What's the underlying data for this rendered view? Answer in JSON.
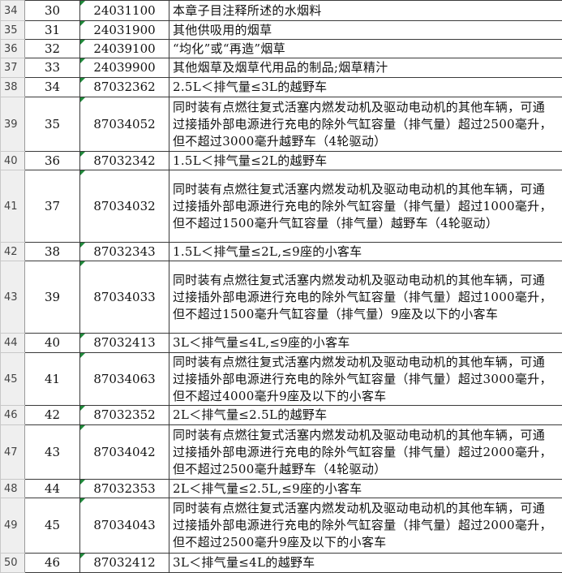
{
  "table": {
    "rows": [
      [
        "34",
        "30",
        "24031100",
        "本章子目注释所述的水烟料"
      ],
      [
        "35",
        "31",
        "24031900",
        "其他供吸用的烟草"
      ],
      [
        "36",
        "32",
        "24039100",
        "“均化”或“再造”烟草"
      ],
      [
        "37",
        "33",
        "24039900",
        "其他烟草及烟草代用品的制品;烟草精汁"
      ],
      [
        "38",
        "34",
        "87032362",
        "2.5L＜排气量≤3L的越野车"
      ],
      [
        "39",
        "35",
        "87034052",
        "同时装有点燃往复式活塞内燃发动机及驱动电动机的其他车辆，可通过接插外部电源进行充电的除外气缸容量（排气量）超过2500毫升，但不超过3000毫升越野车（4轮驱动）"
      ],
      [
        "40",
        "36",
        "87032342",
        "1.5L＜排气量≤2L的越野车"
      ],
      [
        "41",
        "37",
        "87034032",
        "同时装有点燃往复式活塞内燃发动机及驱动电动机的其他车辆，可通过接插外部电源进行充电的除外气缸容量（排气量）超过1000毫升，但不超过1500毫升气缸容量（排气量）越野车（4轮驱动）"
      ],
      [
        "42",
        "38",
        "87032343",
        "1.5L＜排气量≤2L,≤9座的小客车"
      ],
      [
        "43",
        "39",
        "87034033",
        "同时装有点燃往复式活塞内燃发动机及驱动电动机的其他车辆，可通过接插外部电源进行充电的除外气缸容量（排气量）超过1000毫升，但不超过1500毫升气缸容量（排气量）9座及以下的小客车"
      ],
      [
        "44",
        "40",
        "87032413",
        "3L＜排气量≤4L,≤9座的小客车"
      ],
      [
        "45",
        "41",
        "87034063",
        "同时装有点燃往复式活塞内燃发动机及驱动电动机的其他车辆，可通过接插外部电源进行充电的除外气缸容量（排气量）超过3000毫升，但不超过4000毫升9座及以下的小客车"
      ],
      [
        "46",
        "42",
        "87032352",
        "2L＜排气量≤2.5L的越野车"
      ],
      [
        "47",
        "43",
        "87034042",
        "同时装有点燃往复式活塞内燃发动机及驱动电动机的其他车辆，可通过接插外部电源进行充电的除外气缸容量（排气量）超过2000毫升，但不超过2500毫升越野车（4轮驱动）"
      ],
      [
        "48",
        "44",
        "87032353",
        "2L＜排气量≤2.5L,≤9座的小客车"
      ],
      [
        "49",
        "45",
        "87034043",
        "同时装有点燃往复式活塞内燃发动机及驱动电动机的其他车辆，可通过接插外部电源进行充电的除外气缸容量（排气量）超过2000毫升，但不超过2500毫升9座及以下的小客车"
      ],
      [
        "50",
        "46",
        "87032412",
        "3L＜排气量≤4L的越野车"
      ]
    ]
  }
}
